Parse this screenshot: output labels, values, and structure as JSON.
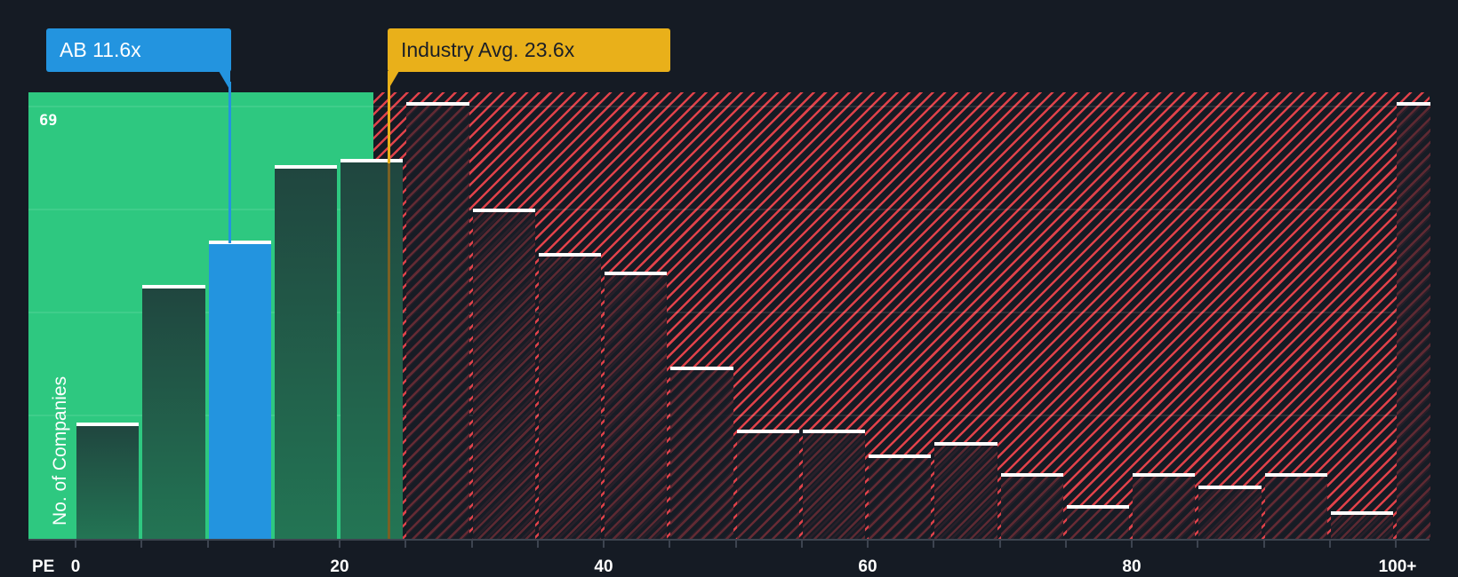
{
  "chart_data": {
    "type": "bar",
    "title": "",
    "xlabel": "PE",
    "ylabel": "No. of Companies",
    "ylim": [
      0,
      69
    ],
    "y_max_label": "69",
    "x_tick_labels": [
      "0",
      "20",
      "40",
      "60",
      "80",
      "100+"
    ],
    "categories": [
      "0-5",
      "5-10",
      "10-15",
      "15-20",
      "20-25",
      "25-30",
      "30-35",
      "35-40",
      "40-45",
      "45-50",
      "50-55",
      "55-60",
      "60-65",
      "65-70",
      "70-75",
      "75-80",
      "80-85",
      "85-90",
      "90-95",
      "95-100",
      "100+"
    ],
    "values": [
      18,
      40,
      47,
      59,
      60,
      69,
      52,
      45,
      42,
      27,
      17,
      17,
      13,
      15,
      10,
      5,
      10,
      8,
      10,
      4,
      69
    ],
    "highlight_bin": "10-15",
    "annotations": [
      {
        "label": "AB 11.6x",
        "x": 11.6,
        "color": "#2394df"
      },
      {
        "label": "Industry Avg. 23.6x",
        "x": 23.6,
        "color": "#e9b01a"
      }
    ],
    "zones": [
      {
        "name": "below-average",
        "from": 0,
        "to": 22.5,
        "color": "#2ec880"
      },
      {
        "name": "above-average",
        "from": 22.5,
        "to": 102,
        "color": "#e0424a"
      }
    ],
    "grid": true,
    "legend": "none"
  },
  "labels": {
    "company_callout": "AB 11.6x",
    "industry_callout": "Industry Avg. 23.6x",
    "y_axis": "No. of Companies",
    "y_max": "69",
    "x_axis": "PE",
    "ticks": [
      "0",
      "20",
      "40",
      "60",
      "80",
      "100+"
    ]
  },
  "colors": {
    "background": "#151b24",
    "green_zone": "#2ec880",
    "red_hatch": "#e0424a",
    "company": "#2394df",
    "industry": "#e9b01a"
  }
}
